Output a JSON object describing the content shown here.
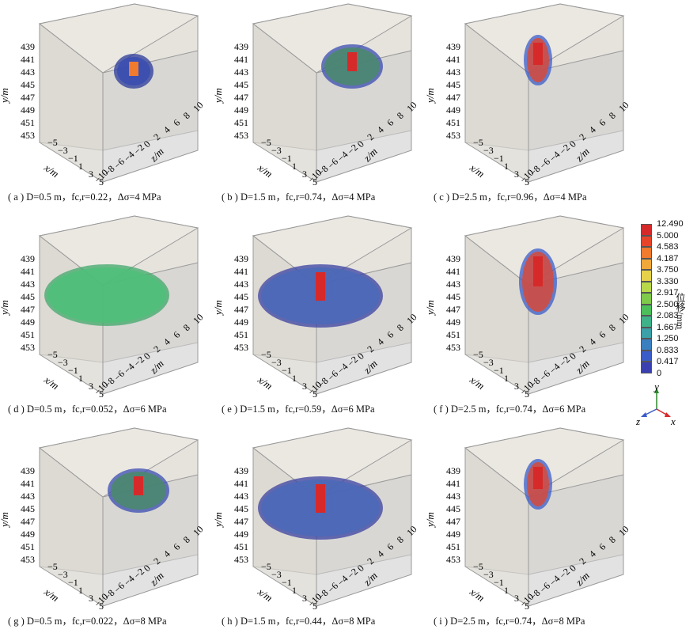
{
  "panels": [
    {
      "id": "a",
      "caption": "( a ) D=0.5 m，fc,r=0.22，Δσ=4 MPa",
      "blob": "small",
      "peak": "orange"
    },
    {
      "id": "b",
      "caption": "( b ) D=1.5 m，fc,r=0.74，Δσ=4 MPa",
      "blob": "medium",
      "peak": "red"
    },
    {
      "id": "c",
      "caption": "( c ) D=2.5 m，fc,r=0.96，Δσ=4 MPa",
      "blob": "column",
      "peak": "red"
    },
    {
      "id": "d",
      "caption": "( d ) D=0.5 m，fc,r=0.052，Δσ=6 MPa",
      "blob": "large-green",
      "peak": "green"
    },
    {
      "id": "e",
      "caption": "( e ) D=1.5 m，fc,r=0.59，Δσ=6 MPa",
      "blob": "large-blue",
      "peak": "red"
    },
    {
      "id": "f",
      "caption": "( f ) D=2.5 m，fc,r=0.74，Δσ=6 MPa",
      "blob": "column-wide",
      "peak": "red"
    },
    {
      "id": "g",
      "caption": "( g ) D=0.5 m，fc,r=0.022，Δσ=8 MPa",
      "blob": "medium",
      "peak": "red"
    },
    {
      "id": "h",
      "caption": "( h ) D=1.5 m，fc,r=0.44，Δσ=8 MPa",
      "blob": "large-blue",
      "peak": "red"
    },
    {
      "id": "i",
      "caption": "( i ) D=2.5 m，fc,r=0.74，Δσ=8 MPa",
      "blob": "column",
      "peak": "red"
    }
  ],
  "axes": {
    "y_label": "y/m",
    "x_label": "x/m",
    "z_label": "z/m",
    "y_ticks": [
      "439",
      "441",
      "443",
      "445",
      "447",
      "449",
      "451",
      "453"
    ],
    "x_ticks": [
      "−5",
      "−3",
      "−1",
      "1",
      "3",
      "5"
    ],
    "z_ticks": [
      "−10",
      "−8",
      "−6",
      "−4",
      "−2",
      "0",
      "2",
      "4",
      "6",
      "8",
      "10"
    ]
  },
  "colorbar": {
    "title": "位移/mm",
    "levels": [
      "12.490",
      "5.000",
      "4.583",
      "4.187",
      "3.750",
      "3.330",
      "2.917",
      "2.500",
      "2.083",
      "1.667",
      "1.250",
      "0.833",
      "0.417",
      "0"
    ],
    "colors": [
      "#d62a2a",
      "#e8442a",
      "#f07a2e",
      "#f0a83a",
      "#e6d24a",
      "#b8d84a",
      "#7fca4a",
      "#4cbf5a",
      "#3fb28a",
      "#3ba0a8",
      "#3a7fc0",
      "#3a5cc8",
      "#3a40b0"
    ]
  },
  "triad": {
    "y": "y",
    "z": "z",
    "x": "x"
  }
}
